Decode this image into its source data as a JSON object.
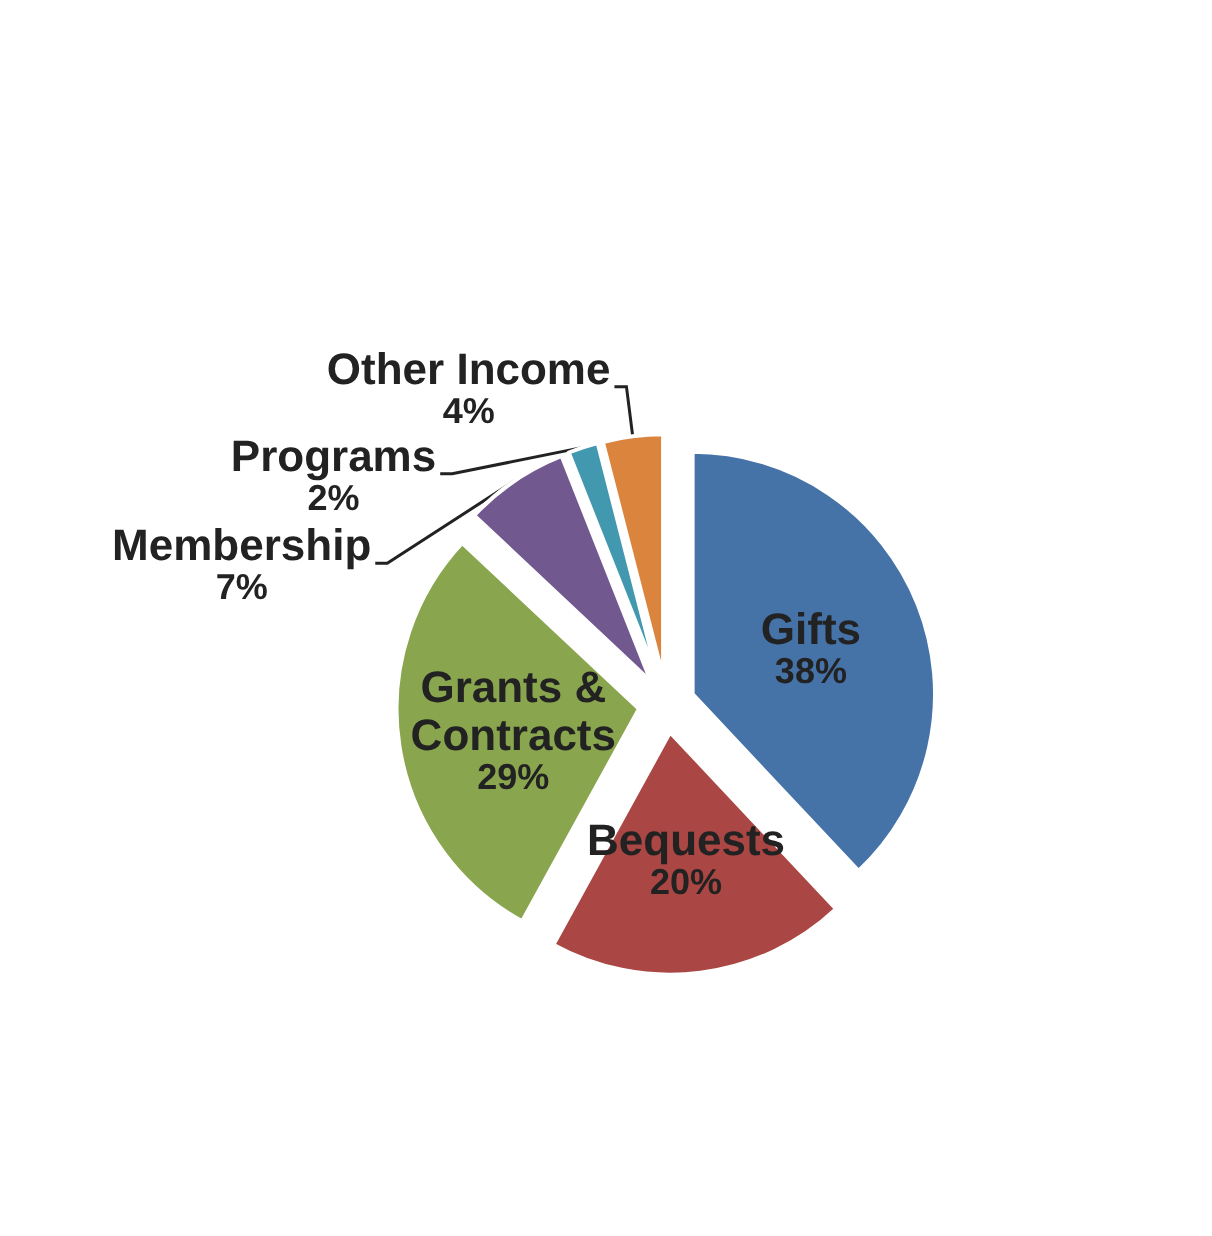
{
  "chart_data": {
    "type": "pie",
    "categories": [
      "Gifts",
      "Bequests",
      "Grants & Contracts",
      "Membership",
      "Programs",
      "Other Income"
    ],
    "values": [
      38,
      20,
      29,
      7,
      2,
      4
    ],
    "colors": [
      "#4572a7",
      "#aa4643",
      "#89a54e",
      "#71588f",
      "#4198af",
      "#db843d"
    ],
    "value_labels": [
      "38%",
      "20%",
      "29%",
      "7%",
      "2%",
      "4%"
    ]
  }
}
